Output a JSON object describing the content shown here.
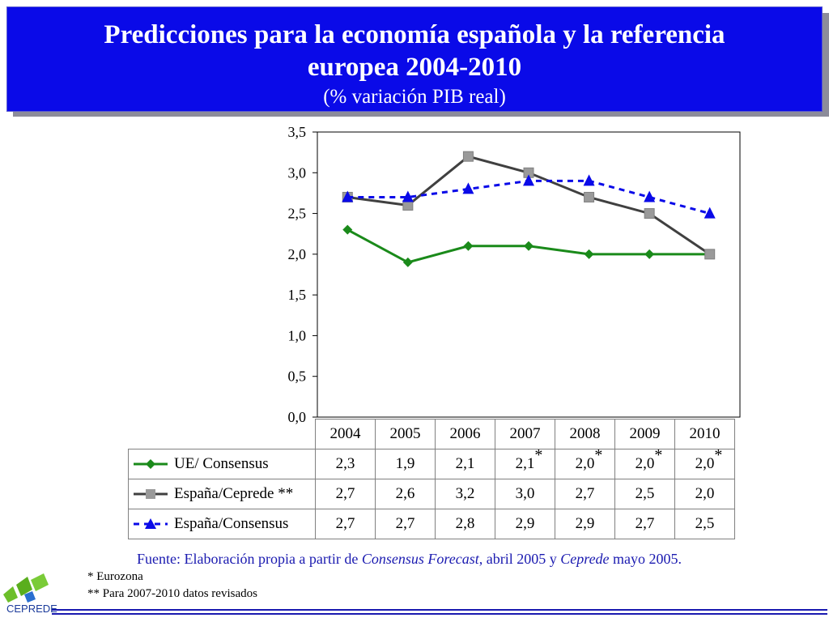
{
  "title": {
    "line1": "Predicciones para la economía española y la referencia",
    "line2": "europea 2004-2010",
    "subtitle": "(% variación PIB real)"
  },
  "chart_data": {
    "type": "line",
    "x": [
      "2004",
      "2005",
      "2006",
      "2007",
      "2008",
      "2009",
      "2010"
    ],
    "ylim": [
      0,
      3.5
    ],
    "yticks": [
      "0,0",
      "0,5",
      "1,0",
      "1,5",
      "2,0",
      "2,5",
      "3,0",
      "3,5"
    ],
    "series": [
      {
        "name": "UE/ Consensus",
        "values": [
          2.3,
          1.9,
          2.1,
          2.1,
          2.0,
          2.0,
          2.0
        ],
        "color": "#1a8a1a",
        "marker": "diamond",
        "dash": false
      },
      {
        "name": "España/Ceprede **",
        "values": [
          2.7,
          2.6,
          3.2,
          3.0,
          2.7,
          2.5,
          2.0
        ],
        "color": "#404040",
        "marker": "square",
        "dash": false
      },
      {
        "name": "España/Consensus",
        "values": [
          2.7,
          2.7,
          2.8,
          2.9,
          2.9,
          2.7,
          2.5
        ],
        "color": "#0a0ae8",
        "marker": "triangle",
        "dash": true
      }
    ]
  },
  "table": {
    "years": [
      "2004",
      "2005",
      "2006",
      "2007",
      "2008",
      "2009",
      "2010"
    ],
    "rows": [
      {
        "label": "UE/ Consensus",
        "values": [
          "2,3",
          "1,9",
          "2,1",
          "2,1",
          "2,0",
          "2,0",
          "2,0"
        ],
        "stars": [
          "",
          "",
          "",
          "*",
          "*",
          "*",
          "*"
        ]
      },
      {
        "label": "España/Ceprede **",
        "values": [
          "2,7",
          "2,6",
          "3,2",
          "3,0",
          "2,7",
          "2,5",
          "2,0"
        ],
        "stars": [
          "",
          "",
          "",
          "",
          "",
          "",
          ""
        ]
      },
      {
        "label": "España/Consensus",
        "values": [
          "2,7",
          "2,7",
          "2,8",
          "2,9",
          "2,9",
          "2,7",
          "2,5"
        ],
        "stars": [
          "",
          "",
          "",
          "",
          "",
          "",
          ""
        ]
      }
    ]
  },
  "source": {
    "prefix": "Fuente: Elaboración propia a partir de ",
    "italic1": "Consensus Forecast",
    "mid": ", abril 2005 y ",
    "italic2": "Ceprede",
    "suffix": " mayo 2005."
  },
  "notes": [
    "*   Eurozona",
    "** Para 2007-2010 datos revisados"
  ],
  "logo": {
    "text": "CEPREDE"
  }
}
